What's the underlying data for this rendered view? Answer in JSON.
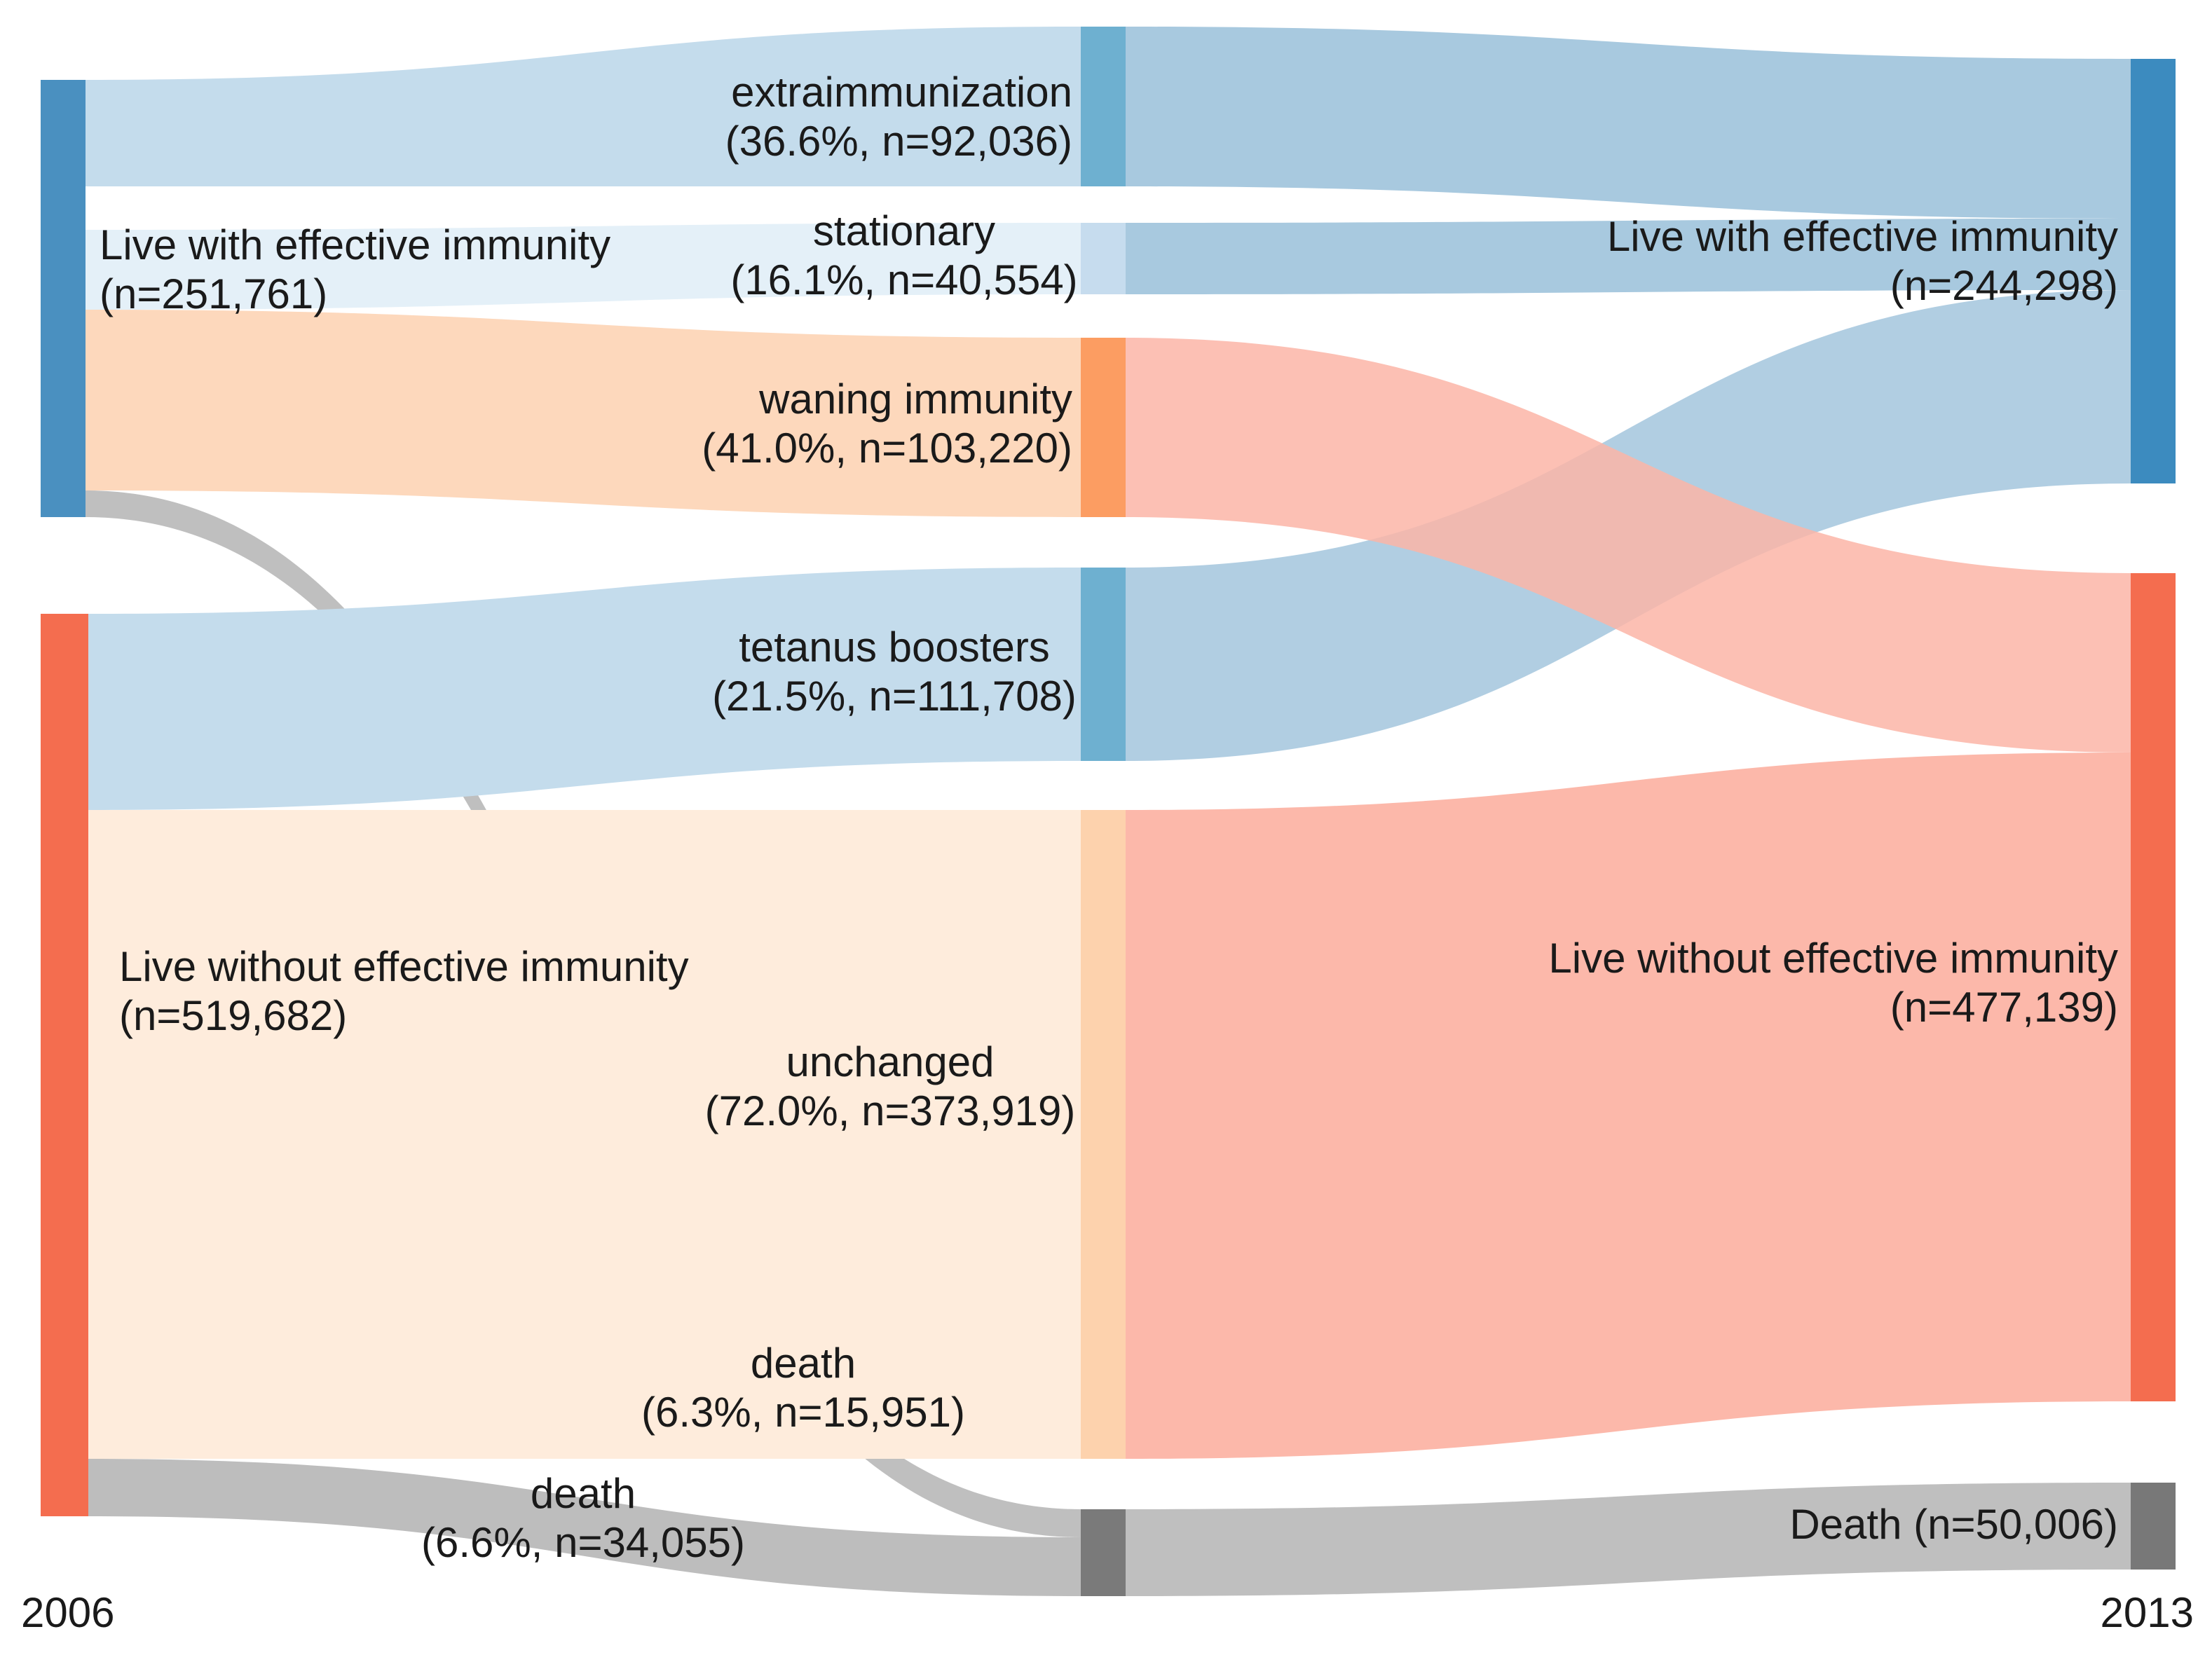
{
  "chart_data": {
    "type": "sankey",
    "axis_labels": {
      "start_year": "2006",
      "end_year": "2013"
    },
    "nodes": [
      {
        "id": "L_eff",
        "column": "2006",
        "label": "Live with effective immunity",
        "count_label": "(n=251,761)",
        "value": 251761,
        "color": "#4a90c0"
      },
      {
        "id": "L_noeff",
        "column": "2006",
        "label": "Live without effective immunity",
        "count_label": "(n=519,682)",
        "value": 519682,
        "color": "#f46d4f"
      },
      {
        "id": "M_extra",
        "column": "transition",
        "label": "extraimmunization",
        "count_label": "(36.6%, n=92,036)",
        "percent": 36.6,
        "value": 92036,
        "color": "#6eb0d0"
      },
      {
        "id": "M_stat",
        "column": "transition",
        "label": "stationary",
        "count_label": "(16.1%, n=40,554)",
        "percent": 16.1,
        "value": 40554,
        "color": "#c6dcee"
      },
      {
        "id": "M_wane",
        "column": "transition",
        "label": "waning immunity",
        "count_label": "(41.0%, n=103,220)",
        "percent": 41.0,
        "value": 103220,
        "color": "#fc9d62"
      },
      {
        "id": "M_boost",
        "column": "transition",
        "label": "tetanus boosters",
        "count_label": "(21.5%, n=111,708)",
        "percent": 21.5,
        "value": 111708,
        "color": "#6eb0d0"
      },
      {
        "id": "M_unch",
        "column": "transition",
        "label": "unchanged",
        "count_label": "(72.0%, n=373,919)",
        "percent": 72.0,
        "value": 373919,
        "color": "#fdd2ad"
      },
      {
        "id": "M_death",
        "column": "transition",
        "label": "",
        "count_label": "",
        "value": 50006,
        "color": "#7a7a7a"
      },
      {
        "id": "R_eff",
        "column": "2013",
        "label": "Live with effective immunity",
        "count_label": "(n=244,298)",
        "value": 244298,
        "color": "#3c8bbf"
      },
      {
        "id": "R_noeff",
        "column": "2013",
        "label": "Live without effective immunity",
        "count_label": "(n=477,139)",
        "value": 477139,
        "color": "#f46d4f"
      },
      {
        "id": "R_death",
        "column": "2013",
        "label": "Death (n=50,006)",
        "count_label": "",
        "value": 50006,
        "color": "#787878"
      }
    ],
    "links": [
      {
        "source": "L_eff",
        "target": "M_extra",
        "value": 92036,
        "color": "#c4dcec"
      },
      {
        "source": "L_eff",
        "target": "M_stat",
        "value": 40554,
        "color": "#e4f0f8"
      },
      {
        "source": "L_eff",
        "target": "M_wane",
        "value": 103220,
        "color": "#fdd8bc"
      },
      {
        "source": "L_eff",
        "target": "M_death",
        "value": 15951,
        "color": "#a9a9a9",
        "opacity": 0.75,
        "label": "death",
        "count_label": "(6.3%, n=15,951)"
      },
      {
        "source": "L_noeff",
        "target": "M_boost",
        "value": 111708,
        "color": "#c4dcec"
      },
      {
        "source": "L_noeff",
        "target": "M_unch",
        "value": 373919,
        "color": "#feecdc"
      },
      {
        "source": "L_noeff",
        "target": "M_death",
        "value": 34055,
        "color": "#bdbdbd",
        "label": "death",
        "count_label": "(6.6%, n=34,055)"
      },
      {
        "source": "M_extra",
        "target": "R_eff",
        "value": 92036,
        "color": "#a8c9df"
      },
      {
        "source": "M_stat",
        "target": "R_eff",
        "value": 40554,
        "color": "#a8c9df"
      },
      {
        "source": "M_boost",
        "target": "R_eff",
        "value": 111708,
        "color": "#a8c9df",
        "opacity": 0.9
      },
      {
        "source": "M_wane",
        "target": "R_noeff",
        "value": 103220,
        "color": "#fcb5a7",
        "opacity": 0.85
      },
      {
        "source": "M_unch",
        "target": "R_noeff",
        "value": 373919,
        "color": "#fcb8aa"
      },
      {
        "source": "M_death",
        "target": "R_death",
        "value": 50006,
        "color": "#bfbfbf"
      }
    ]
  }
}
